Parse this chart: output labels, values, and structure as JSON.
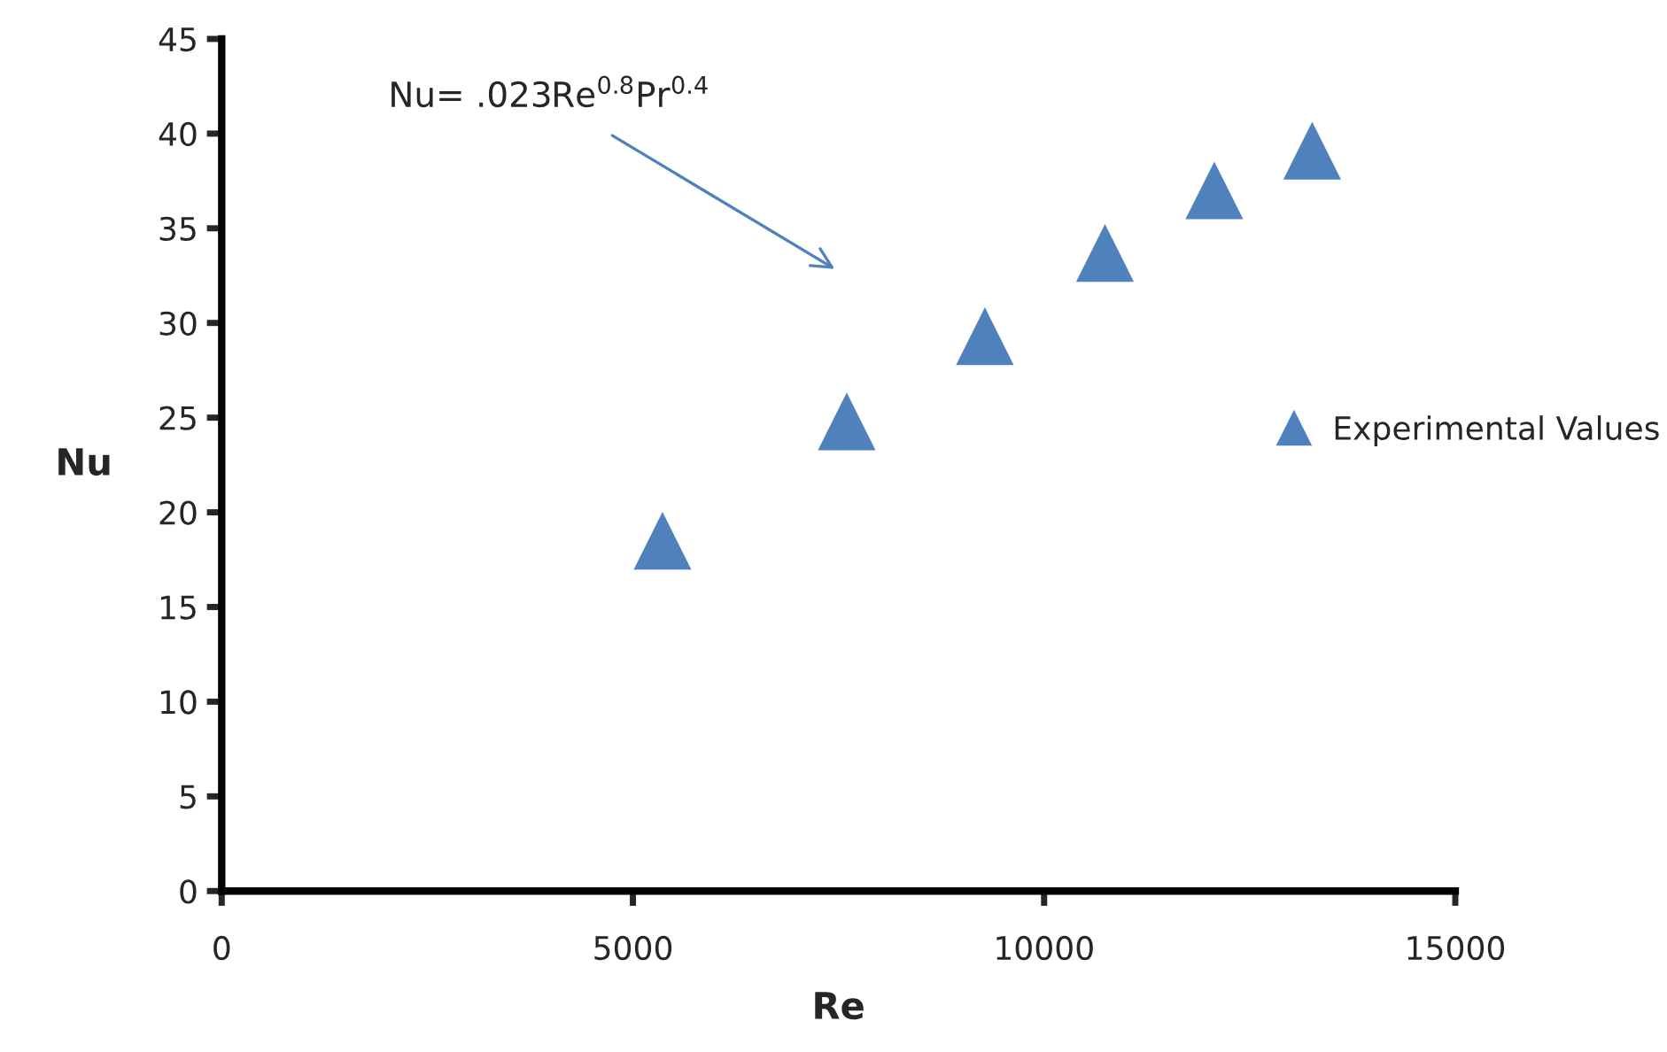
{
  "chart_data": {
    "type": "scatter",
    "xlabel": "Re",
    "ylabel": "Nu",
    "x": [
      5360,
      7600,
      9280,
      10740,
      12070,
      13260
    ],
    "series": [
      {
        "name": "Experimental Values",
        "color": "#4f81bd",
        "values": [
          18.5,
          24.8,
          29.3,
          33.7,
          37.0,
          39.1
        ]
      }
    ],
    "xlim": [
      0,
      15000
    ],
    "xticks": [
      0,
      5000,
      10000,
      15000
    ],
    "ylim": [
      0,
      45
    ],
    "yticks": [
      0,
      5,
      10,
      15,
      20,
      25,
      30,
      35,
      40,
      45
    ],
    "marker": "triangle",
    "grid": false,
    "legend": "right",
    "annotations": [
      "Nu= .023Re$^{0.8}$Pr$^{0.4}$"
    ]
  }
}
